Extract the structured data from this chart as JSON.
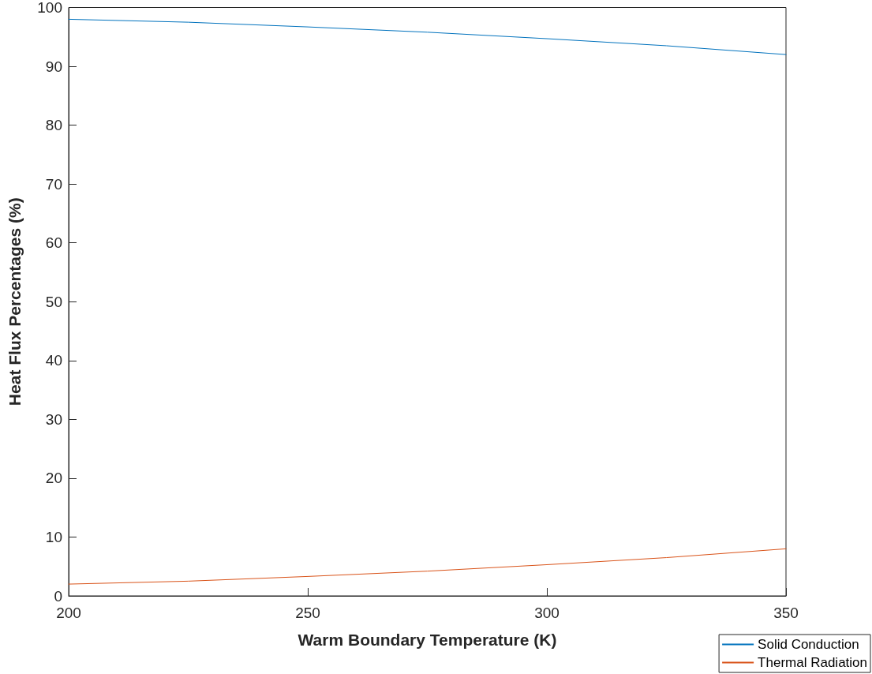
{
  "chart_data": {
    "type": "line",
    "xlabel": "Warm Boundary Temperature (K)",
    "ylabel": "Heat Flux Percentages (%)",
    "x": [
      200,
      225,
      250,
      275,
      300,
      325,
      350
    ],
    "series": [
      {
        "name": "Solid Conduction",
        "color": "#0072bd",
        "values": [
          98.0,
          97.5,
          96.7,
          95.8,
          94.7,
          93.5,
          92.0
        ]
      },
      {
        "name": "Thermal Radiation",
        "color": "#d95319",
        "values": [
          2.0,
          2.5,
          3.3,
          4.2,
          5.3,
          6.5,
          8.0
        ]
      }
    ],
    "xlim": [
      200,
      350
    ],
    "xticks": [
      200,
      250,
      300,
      350
    ],
    "ylim": [
      0,
      100
    ],
    "yticks": [
      0,
      10,
      20,
      30,
      40,
      50,
      60,
      70,
      80,
      90,
      100
    ],
    "grid": false,
    "legend": "bottom right",
    "marker": "none",
    "line_style": "solid"
  }
}
